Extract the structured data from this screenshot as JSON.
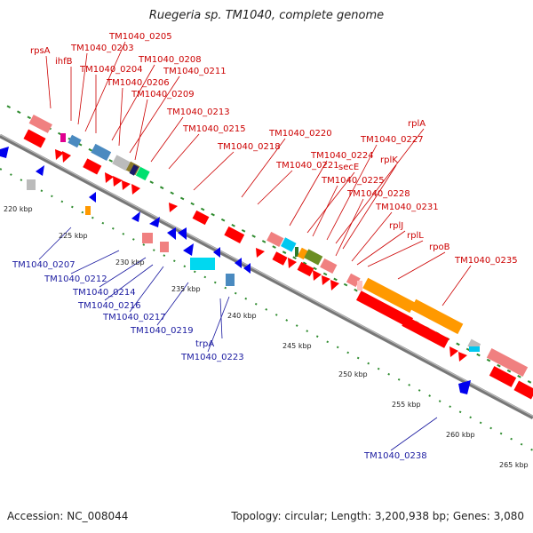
{
  "title": "Ruegeria sp. TM1040, complete genome",
  "footer": {
    "accession": "Accession: NC_008044",
    "summary": "Topology: circular; Length: 3,200,938 bp; Genes: 3,080"
  },
  "colors": {
    "forward_label": "#cc0000",
    "reverse_label": "#1a1aa0",
    "forward_gene": "#ff0000",
    "reverse_gene": "#0000ee",
    "rrna": "#ff9900",
    "tick_dot": "#2e8b2e",
    "backbone": "#888888"
  },
  "scale_ticks": [
    "220 kbp",
    "225 kbp",
    "230 kbp",
    "235 kbp",
    "240 kbp",
    "245 kbp",
    "250 kbp",
    "255 kbp",
    "260 kbp",
    "265 kbp"
  ],
  "forward_labels": [
    "rpsA",
    "ihfB",
    "TM1040_0203",
    "TM1040_0205",
    "TM1040_0204",
    "TM1040_0208",
    "TM1040_0206",
    "TM1040_0211",
    "TM1040_0209",
    "TM1040_0213",
    "TM1040_0215",
    "TM1040_0218",
    "TM1040_0220",
    "TM1040_0221",
    "TM1040_0224",
    "secE",
    "TM1040_0225",
    "TM1040_0227",
    "rplA",
    "rplK",
    "TM1040_0228",
    "TM1040_0231",
    "rplJ",
    "rplL",
    "rpoB",
    "TM1040_0235"
  ],
  "reverse_labels": [
    "TM1040_0207",
    "TM1040_0212",
    "TM1040_0214",
    "TM1040_0216",
    "TM1040_0217",
    "TM1040_0219",
    "trpA",
    "TM1040_0223",
    "TM1040_0238"
  ]
}
